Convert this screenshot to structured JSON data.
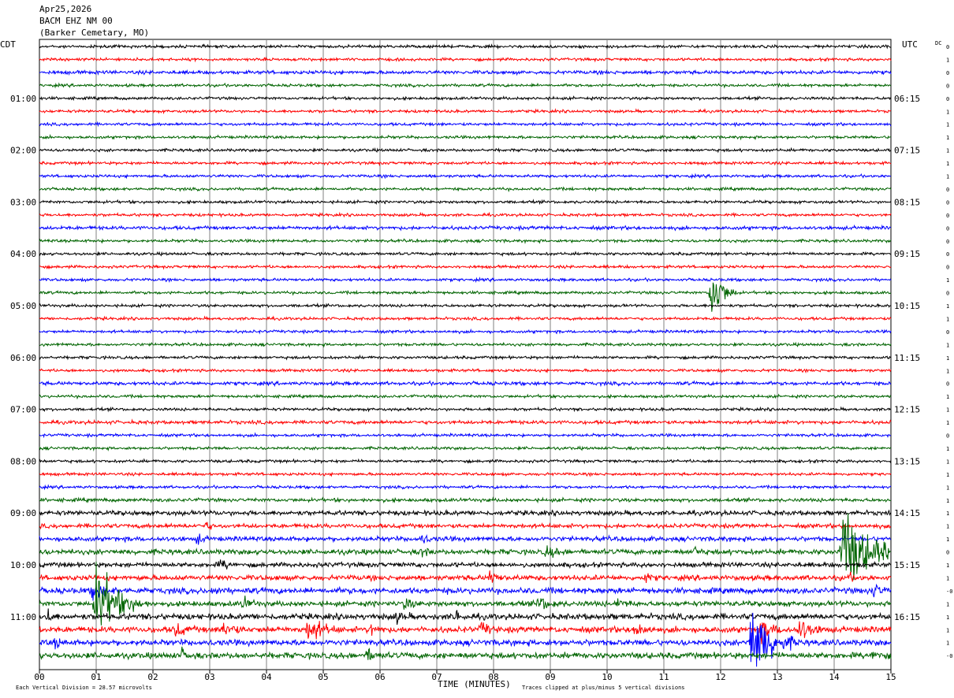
{
  "header": {
    "date": "Apr25,2026",
    "station": "BACM EHZ NM 00",
    "location": "(Barker Cemetary, MO)"
  },
  "left_timezone": "CDT",
  "right_timezone": "UTC",
  "dc_label": "DC",
  "footer": {
    "xlabel": "TIME (MINUTES)",
    "scale_note": "Each Vertical Division =   28.57 microvolts",
    "clip_note": "Traces clipped at plus/minus 5 vertical divisions"
  },
  "colors": {
    "black": "#000000",
    "red": "#ff0000",
    "blue": "#0000ff",
    "green": "#006400",
    "grid": "#808080"
  },
  "chart_data": {
    "type": "line",
    "x_ticks": [
      "00",
      "01",
      "02",
      "03",
      "04",
      "05",
      "06",
      "07",
      "08",
      "09",
      "10",
      "11",
      "12",
      "13",
      "14",
      "15"
    ],
    "xlim": [
      0,
      15
    ],
    "trace_count": 48,
    "trace_color_cycle": [
      "black",
      "red",
      "blue",
      "green"
    ],
    "left_hour_labels": [
      {
        "trace": 4,
        "label": "01:00"
      },
      {
        "trace": 8,
        "label": "02:00"
      },
      {
        "trace": 12,
        "label": "03:00"
      },
      {
        "trace": 16,
        "label": "04:00"
      },
      {
        "trace": 20,
        "label": "05:00"
      },
      {
        "trace": 24,
        "label": "06:00"
      },
      {
        "trace": 28,
        "label": "07:00"
      },
      {
        "trace": 32,
        "label": "08:00"
      },
      {
        "trace": 36,
        "label": "09:00"
      },
      {
        "trace": 40,
        "label": "10:00"
      },
      {
        "trace": 44,
        "label": "11:00"
      }
    ],
    "right_hour_labels": [
      {
        "trace": 4,
        "label": "06:15"
      },
      {
        "trace": 8,
        "label": "07:15"
      },
      {
        "trace": 12,
        "label": "08:15"
      },
      {
        "trace": 16,
        "label": "09:15"
      },
      {
        "trace": 20,
        "label": "10:15"
      },
      {
        "trace": 24,
        "label": "11:15"
      },
      {
        "trace": 28,
        "label": "12:15"
      },
      {
        "trace": 32,
        "label": "13:15"
      },
      {
        "trace": 36,
        "label": "14:15"
      },
      {
        "trace": 40,
        "label": "15:15"
      },
      {
        "trace": 44,
        "label": "16:15"
      }
    ],
    "dc_offsets": [
      "0",
      "1",
      "0",
      "0",
      "0",
      "1",
      "1",
      "1",
      "1",
      "1",
      "1",
      "0",
      "0",
      "0",
      "0",
      "0",
      "0",
      "0",
      "1",
      "0",
      "1",
      "1",
      "0",
      "1",
      "1",
      "1",
      "0",
      "1",
      "1",
      "1",
      "0",
      "1",
      "1",
      "1",
      "1",
      "1",
      "1",
      "1",
      "1",
      "0",
      "1",
      "1",
      "-0",
      "1",
      "1",
      "1",
      "1",
      "-0"
    ],
    "noise_levels": [
      1.2,
      1.2,
      1.5,
      1.2,
      1.2,
      1.2,
      1.2,
      1.2,
      1.2,
      1.2,
      1.2,
      1.2,
      1.2,
      1.2,
      1.5,
      1.2,
      1.2,
      1.2,
      1.2,
      1.2,
      1.2,
      1.2,
      1.2,
      1.2,
      1.2,
      1.2,
      1.5,
      1.2,
      1.2,
      1.5,
      1.2,
      1.2,
      1.2,
      1.2,
      1.2,
      1.5,
      2.0,
      1.8,
      2.0,
      2.2,
      2.0,
      2.2,
      2.5,
      2.2,
      2.5,
      2.5,
      2.5,
      2.5
    ],
    "events": [
      {
        "trace": 19,
        "minute": 11.85,
        "duration": 0.45,
        "amplitude": 30
      },
      {
        "trace": 37,
        "minute": 2.95,
        "duration": 0.15,
        "amplitude": 4
      },
      {
        "trace": 38,
        "minute": 6.75,
        "duration": 0.2,
        "amplitude": 5
      },
      {
        "trace": 38,
        "minute": 2.8,
        "duration": 0.2,
        "amplitude": 4
      },
      {
        "trace": 39,
        "minute": 14.15,
        "duration": 1.2,
        "amplitude": 40
      },
      {
        "trace": 39,
        "minute": 8.95,
        "duration": 0.35,
        "amplitude": 5
      },
      {
        "trace": 39,
        "minute": 6.75,
        "duration": 0.2,
        "amplitude": 4
      },
      {
        "trace": 39,
        "minute": 11.55,
        "duration": 0.2,
        "amplitude": 4
      },
      {
        "trace": 40,
        "minute": 3.2,
        "duration": 0.3,
        "amplitude": 4
      },
      {
        "trace": 41,
        "minute": 7.95,
        "duration": 0.3,
        "amplitude": 6
      },
      {
        "trace": 41,
        "minute": 10.7,
        "duration": 0.15,
        "amplitude": 4
      },
      {
        "trace": 41,
        "minute": 14.25,
        "duration": 0.15,
        "amplitude": 4
      },
      {
        "trace": 42,
        "minute": 14.7,
        "duration": 0.3,
        "amplitude": 6
      },
      {
        "trace": 42,
        "minute": 0.95,
        "duration": 0.5,
        "amplitude": 8
      },
      {
        "trace": 42,
        "minute": 3.05,
        "duration": 0.15,
        "amplitude": 4
      },
      {
        "trace": 43,
        "minute": 1.0,
        "duration": 0.9,
        "amplitude": 35
      },
      {
        "trace": 43,
        "minute": 3.6,
        "duration": 0.3,
        "amplitude": 5
      },
      {
        "trace": 43,
        "minute": 6.45,
        "duration": 0.3,
        "amplitude": 5
      },
      {
        "trace": 43,
        "minute": 8.8,
        "duration": 0.5,
        "amplitude": 6
      },
      {
        "trace": 43,
        "minute": 10.2,
        "duration": 0.3,
        "amplitude": 5
      },
      {
        "trace": 44,
        "minute": 0.15,
        "duration": 0.2,
        "amplitude": 6
      },
      {
        "trace": 44,
        "minute": 7.35,
        "duration": 0.15,
        "amplitude": 6
      },
      {
        "trace": 44,
        "minute": 6.3,
        "duration": 0.3,
        "amplitude": 4
      },
      {
        "trace": 45,
        "minute": 4.75,
        "duration": 0.55,
        "amplitude": 12
      },
      {
        "trace": 45,
        "minute": 3.25,
        "duration": 0.4,
        "amplitude": 7
      },
      {
        "trace": 45,
        "minute": 2.4,
        "duration": 0.4,
        "amplitude": 6
      },
      {
        "trace": 45,
        "minute": 10.5,
        "duration": 0.35,
        "amplitude": 8
      },
      {
        "trace": 45,
        "minute": 12.7,
        "duration": 0.6,
        "amplitude": 8
      },
      {
        "trace": 45,
        "minute": 13.4,
        "duration": 0.5,
        "amplitude": 10
      },
      {
        "trace": 45,
        "minute": 7.8,
        "duration": 0.3,
        "amplitude": 6
      },
      {
        "trace": 45,
        "minute": 5.85,
        "duration": 0.3,
        "amplitude": 5
      },
      {
        "trace": 46,
        "minute": 12.55,
        "duration": 0.8,
        "amplitude": 40
      },
      {
        "trace": 46,
        "minute": 0.3,
        "duration": 0.15,
        "amplitude": 5
      },
      {
        "trace": 47,
        "minute": 5.8,
        "duration": 0.3,
        "amplitude": 5
      },
      {
        "trace": 47,
        "minute": 2.5,
        "duration": 0.3,
        "amplitude": 5
      },
      {
        "trace": 47,
        "minute": 14.7,
        "duration": 0.3,
        "amplitude": 5
      }
    ]
  }
}
